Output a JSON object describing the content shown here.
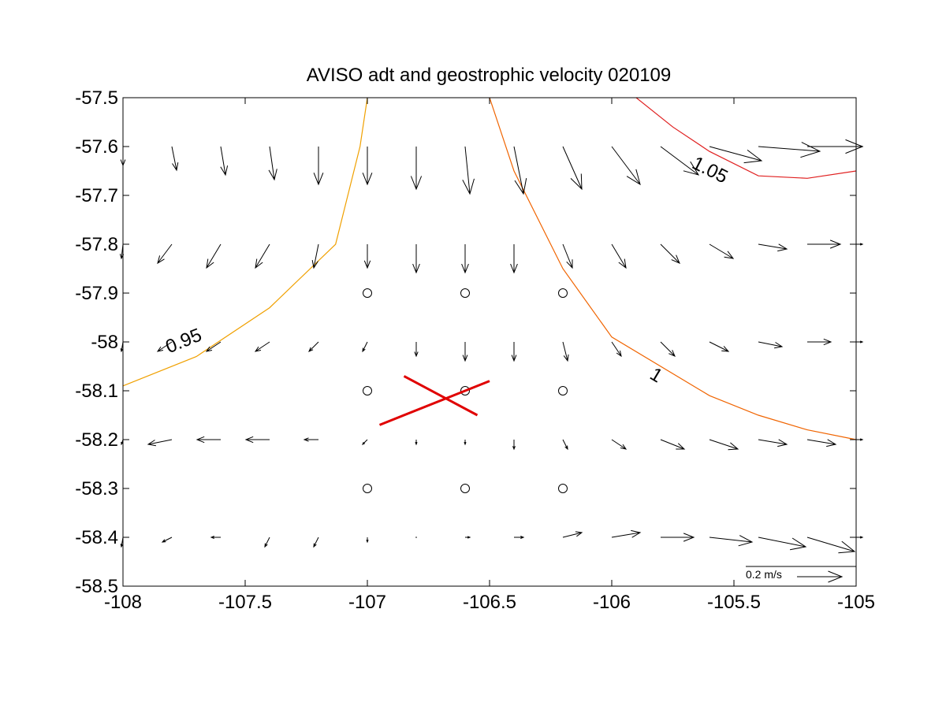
{
  "chart_data": {
    "type": "quiver-contour",
    "title": "AVISO adt and geostrophic velocity 020109",
    "xlabel": "",
    "ylabel": "",
    "xlim": [
      -108,
      -105
    ],
    "ylim": [
      -58.5,
      -57.5
    ],
    "xticks": [
      -108,
      -107.5,
      -107,
      -106.5,
      -106,
      -105.5,
      -105
    ],
    "xtick_labels": [
      "-108",
      "-107.5",
      "-107",
      "-106.5",
      "-106",
      "-105.5",
      "-105"
    ],
    "yticks": [
      -57.5,
      -57.6,
      -57.7,
      -57.8,
      -57.9,
      -58,
      -58.1,
      -58.2,
      -58.3,
      -58.4,
      -58.5
    ],
    "ytick_labels": [
      "-57.5",
      "-57.6",
      "-57.7",
      "-57.8",
      "-57.9",
      "-58",
      "-58.1",
      "-58.2",
      "-58.3",
      "-58.4",
      "-58.5"
    ],
    "grid": false,
    "legend": "none",
    "quiver": {
      "x": [
        -108.0,
        -107.8,
        -107.6,
        -107.4,
        -107.2,
        -107.0,
        -106.8,
        -106.6,
        -106.4,
        -106.2,
        -106.0,
        -105.8,
        -105.6,
        -105.4,
        -105.2,
        -105.0
      ],
      "y": [
        -57.6,
        -57.8,
        -58.0,
        -58.2,
        -58.4
      ],
      "unit_label": "0.2 m/s",
      "u": [
        [
          0.0,
          0.01,
          0.01,
          0.01,
          0.0,
          0.0,
          0.0,
          0.01,
          0.02,
          0.04,
          0.06,
          0.08,
          0.11,
          0.13,
          0.14,
          0.1
        ],
        [
          -0.03,
          -0.03,
          -0.03,
          -0.03,
          -0.01,
          0.0,
          0.0,
          0.0,
          0.0,
          0.02,
          0.03,
          0.04,
          0.05,
          0.06,
          0.07,
          0.05
        ],
        [
          -0.03,
          -0.03,
          -0.03,
          -0.03,
          -0.02,
          -0.01,
          0.0,
          0.0,
          0.0,
          0.01,
          0.02,
          0.03,
          0.04,
          0.05,
          0.05,
          0.03
        ],
        [
          -0.04,
          -0.05,
          -0.05,
          -0.05,
          -0.03,
          -0.01,
          0.0,
          0.0,
          0.0,
          0.01,
          0.03,
          0.05,
          0.06,
          0.06,
          0.06,
          0.03
        ],
        [
          -0.02,
          -0.02,
          -0.02,
          -0.01,
          -0.01,
          0.0,
          0.0,
          0.01,
          0.02,
          0.04,
          0.06,
          0.07,
          0.09,
          0.1,
          0.1,
          0.05
        ]
      ],
      "v": [
        [
          -0.04,
          -0.05,
          -0.06,
          -0.07,
          -0.08,
          -0.08,
          -0.09,
          -0.1,
          -0.1,
          -0.09,
          -0.08,
          -0.06,
          -0.03,
          -0.01,
          0.0,
          0.0
        ],
        [
          -0.03,
          -0.04,
          -0.05,
          -0.05,
          -0.05,
          -0.05,
          -0.06,
          -0.06,
          -0.06,
          -0.05,
          -0.05,
          -0.04,
          -0.03,
          -0.01,
          0.0,
          0.0
        ],
        [
          -0.02,
          -0.02,
          -0.02,
          -0.02,
          -0.02,
          -0.02,
          -0.03,
          -0.04,
          -0.04,
          -0.04,
          -0.03,
          -0.03,
          -0.02,
          -0.01,
          0.0,
          0.0
        ],
        [
          -0.01,
          -0.01,
          0.0,
          0.0,
          0.0,
          -0.01,
          -0.01,
          -0.01,
          -0.02,
          -0.02,
          -0.02,
          -0.02,
          -0.02,
          -0.01,
          -0.01,
          0.0
        ],
        [
          -0.02,
          -0.01,
          0.0,
          -0.02,
          -0.02,
          -0.01,
          0.0,
          0.0,
          0.0,
          0.01,
          0.01,
          0.0,
          -0.01,
          -0.02,
          -0.03,
          0.0
        ]
      ]
    },
    "contours": [
      {
        "level": "0.95",
        "color": "#f0a000",
        "path": [
          [
            -107.0,
            -57.5
          ],
          [
            -107.03,
            -57.6
          ],
          [
            -107.13,
            -57.8
          ],
          [
            -107.4,
            -57.93
          ],
          [
            -107.7,
            -58.03
          ],
          [
            -108.0,
            -58.09
          ]
        ],
        "label_at": [
          -107.75,
          -58.0
        ]
      },
      {
        "level": "1",
        "color": "#f06400",
        "path": [
          [
            -106.5,
            -57.5
          ],
          [
            -106.4,
            -57.65
          ],
          [
            -106.2,
            -57.85
          ],
          [
            -106.0,
            -57.99
          ],
          [
            -105.6,
            -58.11
          ],
          [
            -105.4,
            -58.15
          ],
          [
            -105.2,
            -58.18
          ],
          [
            -105.0,
            -58.2
          ]
        ],
        "label_at": [
          -105.82,
          -58.07
        ]
      },
      {
        "level": "1.05",
        "color": "#e02020",
        "path": [
          [
            -105.9,
            -57.5
          ],
          [
            -105.75,
            -57.56
          ],
          [
            -105.6,
            -57.61
          ],
          [
            -105.4,
            -57.66
          ],
          [
            -105.2,
            -57.665
          ],
          [
            -105.0,
            -57.65
          ]
        ],
        "label_at": [
          -105.6,
          -57.65
        ]
      }
    ],
    "circles": [
      [
        -107.0,
        -57.9
      ],
      [
        -106.6,
        -57.9
      ],
      [
        -106.2,
        -57.9
      ],
      [
        -107.0,
        -58.1
      ],
      [
        -106.6,
        -58.1
      ],
      [
        -106.2,
        -58.1
      ],
      [
        -107.0,
        -58.3
      ],
      [
        -106.6,
        -58.3
      ],
      [
        -106.2,
        -58.3
      ]
    ],
    "cross": {
      "color": "#e00000",
      "lines": [
        [
          [
            -106.85,
            -58.07
          ],
          [
            -106.55,
            -58.15
          ]
        ],
        [
          [
            -106.95,
            -58.17
          ],
          [
            -106.5,
            -58.08
          ]
        ]
      ]
    }
  }
}
